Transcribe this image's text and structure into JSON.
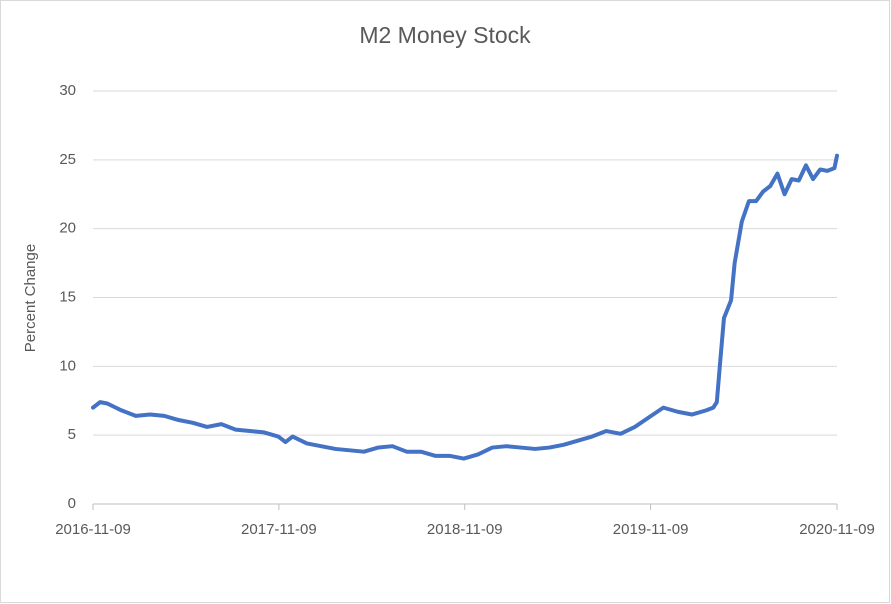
{
  "chart_data": {
    "type": "line",
    "title": "M2 Money Stock",
    "y_label": "Percent Change",
    "x": [
      "2016-11-09",
      "2016-11-23",
      "2016-12-07",
      "2017-01-04",
      "2017-02-01",
      "2017-03-01",
      "2017-03-29",
      "2017-04-26",
      "2017-05-24",
      "2017-06-21",
      "2017-07-19",
      "2017-08-16",
      "2017-09-13",
      "2017-10-11",
      "2017-11-08",
      "2017-11-22",
      "2017-12-06",
      "2018-01-03",
      "2018-01-31",
      "2018-02-28",
      "2018-03-28",
      "2018-04-25",
      "2018-05-23",
      "2018-06-20",
      "2018-07-18",
      "2018-08-15",
      "2018-09-12",
      "2018-10-10",
      "2018-11-07",
      "2018-12-05",
      "2019-01-02",
      "2019-01-30",
      "2019-02-27",
      "2019-03-27",
      "2019-04-24",
      "2019-05-22",
      "2019-06-19",
      "2019-07-17",
      "2019-08-14",
      "2019-09-11",
      "2019-10-09",
      "2019-11-06",
      "2019-12-04",
      "2020-01-01",
      "2020-01-29",
      "2020-02-26",
      "2020-03-11",
      "2020-03-18",
      "2020-03-25",
      "2020-04-01",
      "2020-04-15",
      "2020-04-22",
      "2020-05-06",
      "2020-05-20",
      "2020-06-03",
      "2020-06-17",
      "2020-07-01",
      "2020-07-15",
      "2020-07-29",
      "2020-08-12",
      "2020-08-26",
      "2020-09-09",
      "2020-09-23",
      "2020-10-07",
      "2020-10-21",
      "2020-11-04",
      "2020-11-09"
    ],
    "series": [
      {
        "name": "M2",
        "color": "#4472c4",
        "values": [
          7.0,
          7.4,
          7.3,
          6.8,
          6.4,
          6.5,
          6.4,
          6.1,
          5.9,
          5.6,
          5.8,
          5.4,
          5.3,
          5.2,
          4.9,
          4.5,
          4.9,
          4.4,
          4.2,
          4.0,
          3.9,
          3.8,
          4.1,
          4.2,
          3.8,
          3.8,
          3.5,
          3.5,
          3.3,
          3.6,
          4.1,
          4.2,
          4.1,
          4.0,
          4.1,
          4.3,
          4.6,
          4.9,
          5.3,
          5.1,
          5.6,
          6.3,
          7.0,
          6.7,
          6.5,
          6.8,
          7.0,
          7.4,
          10.5,
          13.5,
          14.8,
          17.5,
          20.5,
          22.0,
          22.0,
          22.7,
          23.1,
          24.0,
          22.5,
          23.6,
          23.5,
          24.6,
          23.6,
          24.3,
          24.2,
          24.4,
          25.3
        ]
      }
    ],
    "xlim": [
      "2016-11-09",
      "2020-11-09"
    ],
    "xticks": [
      "2016-11-09",
      "2017-11-09",
      "2018-11-09",
      "2019-11-09",
      "2020-11-09"
    ],
    "ylim": [
      0,
      30
    ],
    "yticks": [
      0,
      5,
      10,
      15,
      20,
      25,
      30
    ],
    "grid": true
  }
}
